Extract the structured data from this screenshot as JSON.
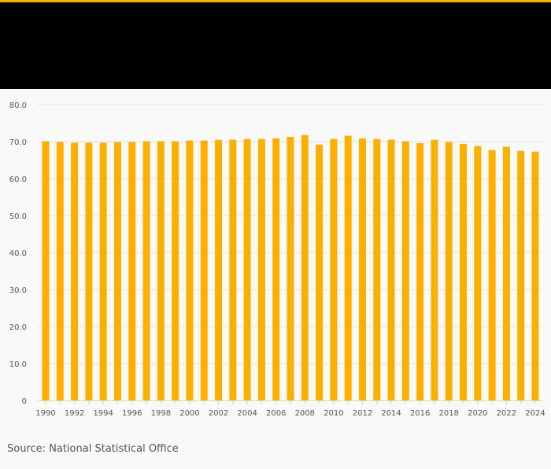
{
  "colors": {
    "bar": "#fbb000",
    "accent": "#fbb000",
    "banner": "#000000",
    "grid": "#e4e4e4"
  },
  "chart_data": {
    "type": "bar",
    "title": "",
    "xlabel": "",
    "ylabel": "",
    "ylim": [
      0,
      80
    ],
    "yticks": [
      "0",
      "10.0",
      "20.0",
      "30.0",
      "40.0",
      "50.0",
      "60.0",
      "70.0",
      "80.0"
    ],
    "grid": true,
    "categories": [
      "1990",
      "1991",
      "1992",
      "1993",
      "1994",
      "1995",
      "1996",
      "1997",
      "1998",
      "1999",
      "2000",
      "2001",
      "2002",
      "2003",
      "2004",
      "2005",
      "2006",
      "2007",
      "2008",
      "2009",
      "2010",
      "2011",
      "2012",
      "2013",
      "2014",
      "2015",
      "2016",
      "2017",
      "2018",
      "2019",
      "2020",
      "2021",
      "2022",
      "2023",
      "2024"
    ],
    "values": [
      70.1,
      69.9,
      69.7,
      69.7,
      69.7,
      69.9,
      69.9,
      70.1,
      70.1,
      70.1,
      70.3,
      70.3,
      70.5,
      70.5,
      70.7,
      70.7,
      70.9,
      71.3,
      71.8,
      69.2,
      70.7,
      71.6,
      70.9,
      70.7,
      70.5,
      70.1,
      69.6,
      70.5,
      69.9,
      69.4,
      68.8,
      67.7,
      68.6,
      67.5,
      67.3
    ]
  },
  "source": "Source: National Statistical Office"
}
